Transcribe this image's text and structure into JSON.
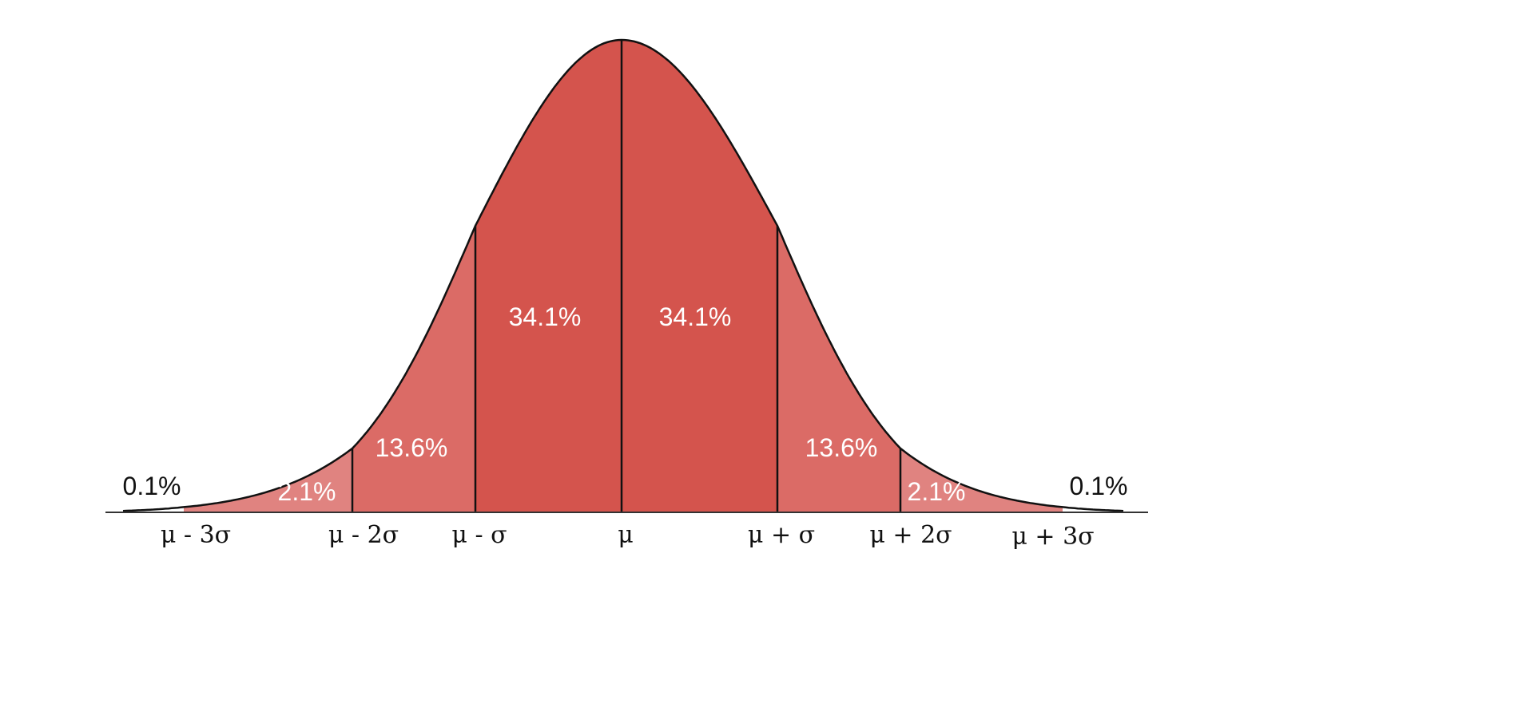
{
  "chart_data": {
    "type": "area",
    "title": "",
    "xlabel": "",
    "ylabel": "",
    "categories": [
      "μ - 3σ",
      "μ - 2σ",
      "μ - σ",
      "μ",
      "μ + σ",
      "μ + 2σ",
      "μ + 3σ"
    ],
    "x_range_sigma": [
      -3,
      3
    ],
    "grid": false,
    "segments": [
      {
        "from": -99,
        "to": -3,
        "label": "0.1%",
        "value": 0.1,
        "color": "#ffffff",
        "label_outside": true
      },
      {
        "from": -3,
        "to": -2,
        "label": "2.1%",
        "value": 2.1,
        "color": "#e08380"
      },
      {
        "from": -2,
        "to": -1,
        "label": "13.6%",
        "value": 13.6,
        "color": "#db6b66"
      },
      {
        "from": -1,
        "to": 0,
        "label": "34.1%",
        "value": 34.1,
        "color": "#d4544d"
      },
      {
        "from": 0,
        "to": 1,
        "label": "34.1%",
        "value": 34.1,
        "color": "#d4544d"
      },
      {
        "from": 1,
        "to": 2,
        "label": "13.6%",
        "value": 13.6,
        "color": "#db6b66"
      },
      {
        "from": 2,
        "to": 3,
        "label": "2.1%",
        "value": 2.1,
        "color": "#e08380"
      },
      {
        "from": 3,
        "to": 99,
        "label": "0.1%",
        "value": 0.1,
        "color": "#ffffff",
        "label_outside": true
      }
    ],
    "line_color": "#111111"
  }
}
